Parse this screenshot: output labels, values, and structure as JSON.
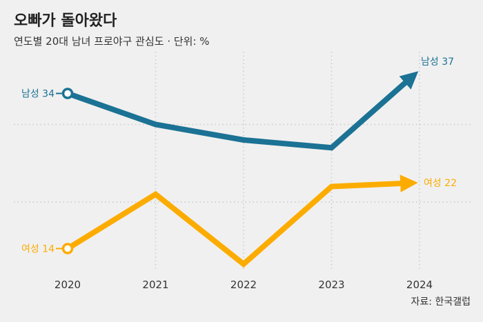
{
  "title": "오빠가 돌아왔다",
  "subtitle": "연도별 20대 남녀 프로야구 관심도 · 단위: %",
  "source": "자료: 한국갤럽",
  "chart_data": {
    "type": "line",
    "title": "오빠가 돌아왔다",
    "subtitle": "연도별 20대 남녀 프로야구 관심도 · 단위: %",
    "x": [
      "2020",
      "2021",
      "2022",
      "2023",
      "2024"
    ],
    "ylim": [
      10,
      40
    ],
    "grid": true,
    "series": [
      {
        "name": "남성",
        "color": "#1b7294",
        "values": [
          34,
          30,
          28,
          27,
          37
        ],
        "start_label": "남성 34",
        "end_label": "남성 37"
      },
      {
        "name": "여성",
        "color": "#fcac00",
        "values": [
          14,
          21,
          12,
          22,
          22.5
        ],
        "start_label": "여성 14",
        "end_label": "여성 22"
      }
    ]
  }
}
